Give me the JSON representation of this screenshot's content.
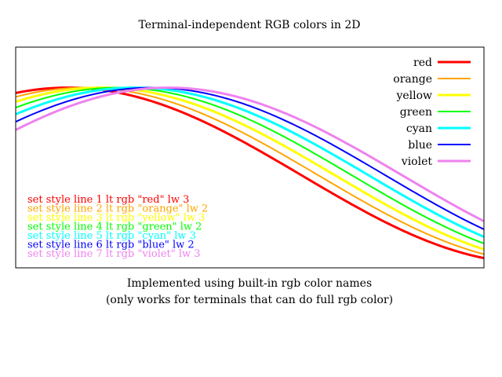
{
  "chart_data": {
    "type": "line",
    "title": "Terminal-independent RGB colors in 2D",
    "xlabel": "Implemented using built-in rgb color names",
    "xlabel_line2": "(only works for terminals that can do full rgb color)",
    "ylabel": "",
    "grid": false,
    "legend": "top-right",
    "series": [
      {
        "name": "red",
        "color": "#ff0000",
        "lw": 3,
        "phase": 0.0
      },
      {
        "name": "orange",
        "color": "#ffa500",
        "lw": 2,
        "phase": 0.25
      },
      {
        "name": "yellow",
        "color": "#ffff00",
        "lw": 3,
        "phase": 0.5
      },
      {
        "name": "green",
        "color": "#00ff00",
        "lw": 2,
        "phase": 0.75
      },
      {
        "name": "cyan",
        "color": "#00ffff",
        "lw": 3,
        "phase": 1.0
      },
      {
        "name": "blue",
        "color": "#0000ff",
        "lw": 2,
        "phase": 1.25
      },
      {
        "name": "violet",
        "color": "#ee82ee",
        "lw": 3,
        "phase": 1.5
      }
    ],
    "annotations": [
      {
        "text": "set style line 1 lt rgb \"red\" lw 3",
        "color": "#ff0000"
      },
      {
        "text": "set style line 2 lt rgb \"orange\" lw 2",
        "color": "#ffa500"
      },
      {
        "text": "set style line 3 lt rgb \"yellow\" lw 3",
        "color": "#ffff00"
      },
      {
        "text": "set style line 4 lt rgb \"green\" lw 2",
        "color": "#00ff00"
      },
      {
        "text": "set style line 5 lt rgb \"cyan\" lw 3",
        "color": "#00ffff"
      },
      {
        "text": "set style line 6 lt rgb \"blue\" lw 2",
        "color": "#0000ff"
      },
      {
        "text": "set style line 7 lt rgb \"violet\" lw 3",
        "color": "#ee82ee"
      }
    ]
  }
}
